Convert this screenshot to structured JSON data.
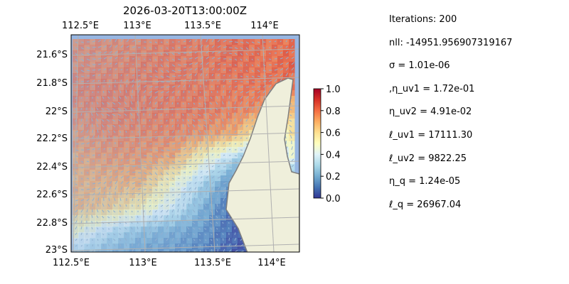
{
  "title": "2026-03-20T13:00:00Z",
  "info": [
    "Iterations: 200",
    "nll: -14951.956907319167",
    "σ = 1.01e-06",
    ",η_uv1 = 1.72e-01",
    "η_uv2 = 4.91e-02",
    "ℓ_uv1 = 17111.30",
    "ℓ_uv2 = 9822.25",
    "η_q = 1.24e-05",
    "ℓ_q = 26967.04"
  ],
  "chart_data": {
    "type": "heatmap",
    "title": "2026-03-20T13:00:00Z",
    "colormap": "RdYlBu_r",
    "lon_range": [
      112.5,
      114.2
    ],
    "lat_range": [
      -23.05,
      -21.45
    ],
    "lon_ticks": [
      "112.5°E",
      "113°E",
      "113.5°E",
      "114°E"
    ],
    "lat_ticks": [
      "21.6°S",
      "21.8°S",
      "22°S",
      "22.2°S",
      "22.4°S",
      "22.6°S",
      "22.8°S",
      "23°S"
    ],
    "colorbar": {
      "range": [
        0,
        1
      ],
      "ticks": [
        "0.0",
        "0.2",
        "0.4",
        "0.6",
        "0.8",
        "1.0"
      ]
    },
    "grid_values": [
      [
        0.78,
        0.78,
        0.78,
        0.8,
        0.8,
        0.82,
        0.8,
        0.8
      ],
      [
        0.78,
        0.78,
        0.8,
        0.8,
        0.8,
        0.82,
        0.8,
        0.85
      ],
      [
        0.8,
        0.8,
        0.8,
        0.8,
        0.8,
        0.8,
        0.8,
        0.8
      ],
      [
        0.78,
        0.8,
        0.8,
        0.8,
        0.8,
        0.78,
        0.75,
        0.6
      ],
      [
        0.75,
        0.78,
        0.78,
        0.78,
        0.75,
        0.7,
        0.4,
        0.65
      ],
      [
        0.72,
        0.75,
        0.75,
        0.72,
        0.5,
        0.3,
        0.2,
        0.55
      ],
      [
        0.7,
        0.7,
        0.7,
        0.5,
        0.3,
        0.1,
        0.05,
        0.3
      ],
      [
        0.7,
        0.65,
        0.55,
        0.4,
        0.2,
        0.05,
        0.02,
        0.3
      ],
      [
        0.5,
        0.35,
        0.25,
        0.2,
        0.15,
        0.05,
        0.02,
        0.3
      ],
      [
        0.3,
        0.2,
        0.15,
        0.15,
        0.1,
        0.03,
        0.02,
        0.3
      ]
    ],
    "colors": {
      "ocean": "#97b6e2",
      "land": "#efefdb",
      "coast": "#7f7f7f",
      "gridlines": "#b0b0b0",
      "arrows": "#8fb0d0"
    }
  }
}
